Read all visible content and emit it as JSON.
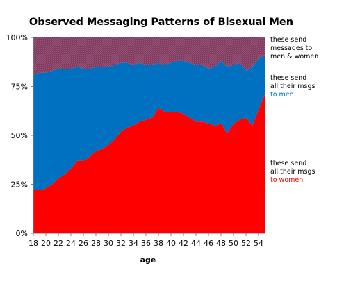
{
  "chart_data": {
    "type": "area",
    "stacked": true,
    "title": "Observed Messaging Patterns of Bisexual Men",
    "xlabel": "age",
    "ylabel": "",
    "x": [
      18,
      19,
      20,
      21,
      22,
      23,
      24,
      25,
      26,
      27,
      28,
      29,
      30,
      31,
      32,
      33,
      34,
      35,
      36,
      37,
      38,
      39,
      40,
      41,
      42,
      43,
      44,
      45,
      46,
      47,
      48,
      49,
      50,
      51,
      52,
      53,
      54,
      55
    ],
    "xticks": [
      "18",
      "20",
      "22",
      "24",
      "26",
      "28",
      "30",
      "32",
      "34",
      "36",
      "38",
      "40",
      "42",
      "44",
      "46",
      "48",
      "50",
      "52",
      "54"
    ],
    "yticks": [
      "0%",
      "25%",
      "50%",
      "75%",
      "100%"
    ],
    "ylim": [
      0,
      100
    ],
    "series": [
      {
        "key": "women",
        "color": "#ff0000",
        "values": [
          22,
          22,
          23,
          25,
          28,
          30,
          33,
          37,
          37,
          39,
          42,
          43,
          45,
          48,
          52,
          54,
          55,
          57,
          58,
          59,
          64,
          62,
          62,
          62,
          61,
          59,
          57,
          57,
          56,
          55,
          56,
          51,
          56,
          58,
          59,
          55,
          63,
          71
        ]
      },
      {
        "key": "men",
        "color": "#0070c0",
        "values": [
          59,
          60,
          59,
          58,
          56,
          54,
          51,
          48,
          47,
          45,
          43,
          42,
          40,
          38,
          35,
          33,
          31,
          30,
          28,
          27,
          23,
          24,
          25,
          26,
          27,
          28,
          29,
          29,
          28,
          30,
          32,
          34,
          30,
          29,
          24,
          30,
          26,
          20
        ]
      },
      {
        "key": "both",
        "color": "#7f3a5e",
        "values": [
          19,
          18,
          18,
          17,
          16,
          16,
          16,
          15,
          16,
          16,
          15,
          15,
          15,
          14,
          13,
          13,
          14,
          13,
          14,
          14,
          13,
          14,
          13,
          12,
          12,
          13,
          14,
          14,
          16,
          15,
          12,
          15,
          14,
          13,
          17,
          15,
          11,
          9
        ]
      }
    ],
    "annotations": [
      {
        "key": "both",
        "lines": [
          "these send",
          "messages to",
          "men & women"
        ],
        "color": "#000000"
      },
      {
        "key": "men",
        "lines": [
          "these send",
          "all their msgs",
          "to men"
        ],
        "colors": [
          "#000000",
          "#000000",
          "#0070c0"
        ]
      },
      {
        "key": "women",
        "lines": [
          "these send",
          "all their msgs",
          "to women"
        ],
        "colors": [
          "#000000",
          "#000000",
          "#ff0000"
        ]
      }
    ]
  }
}
